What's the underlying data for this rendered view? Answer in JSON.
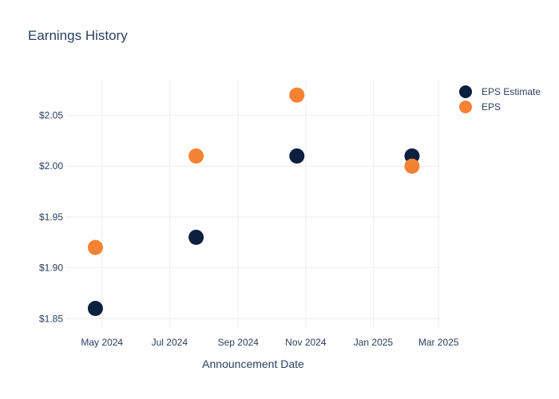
{
  "chart_data": {
    "type": "scatter",
    "title": "Earnings History",
    "xlabel": "Announcement Date",
    "ylabel": "",
    "x_ticks": [
      "May 2024",
      "Jul 2024",
      "Sep 2024",
      "Nov 2024",
      "Jan 2025",
      "Mar 2025"
    ],
    "y_ticks": [
      "$1.85",
      "$1.90",
      "$1.95",
      "$2.00",
      "$2.05"
    ],
    "xlim": [
      "2024-03-29",
      "2025-03-03"
    ],
    "ylim": [
      1.84,
      2.085
    ],
    "grid": true,
    "legend_position": "top-right",
    "series": [
      {
        "name": "EPS Estimate",
        "color": "#0b1f3f",
        "points": [
          {
            "x": "2024-04-25",
            "y": 1.86
          },
          {
            "x": "2024-07-25",
            "y": 1.93
          },
          {
            "x": "2024-10-24",
            "y": 2.01
          },
          {
            "x": "2025-02-05",
            "y": 2.01
          }
        ]
      },
      {
        "name": "EPS",
        "color": "#f58232",
        "points": [
          {
            "x": "2024-04-25",
            "y": 1.92
          },
          {
            "x": "2024-07-25",
            "y": 2.01
          },
          {
            "x": "2024-10-24",
            "y": 2.07
          },
          {
            "x": "2025-02-05",
            "y": 2.0
          }
        ]
      }
    ]
  }
}
